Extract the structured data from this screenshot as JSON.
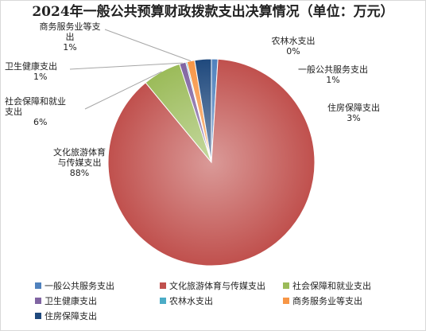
{
  "chart_data": {
    "type": "pie",
    "title": "2024年一般公共预算财政拨款支出决算情况（单位：万元）",
    "slices": [
      {
        "name": "一般公共服务支出",
        "percent_label": "1%",
        "value": 1.0,
        "color": "#4f81bd"
      },
      {
        "name": "文化旅游体育与传媒支出",
        "percent_label": "88%",
        "value": 88.0,
        "color": "#c0504d"
      },
      {
        "name": "社会保障和就业支出",
        "percent_label": "6%",
        "value": 6.0,
        "color": "#9bbb59"
      },
      {
        "name": "卫生健康支出",
        "percent_label": "1%",
        "value": 1.0,
        "color": "#8064a2"
      },
      {
        "name": "农林水支出",
        "percent_label": "0%",
        "value": 0.2,
        "color": "#4bacc6"
      },
      {
        "name": "商务服务业等支出",
        "percent_label": "1%",
        "value": 1.2,
        "color": "#f79646"
      },
      {
        "name": "住房保障支出",
        "percent_label": "3%",
        "value": 2.6,
        "color": "#1f497d"
      }
    ],
    "legend_position": "bottom"
  }
}
